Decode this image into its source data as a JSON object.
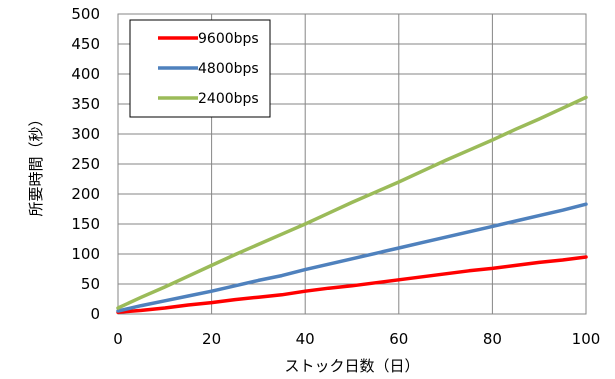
{
  "chart_data": {
    "type": "line",
    "xlabel": "ストック日数（日）",
    "ylabel": "所要時間（秒）",
    "xlim": [
      0,
      100
    ],
    "ylim": [
      0,
      500
    ],
    "x_ticks": [
      "0",
      "20",
      "40",
      "60",
      "80",
      "100"
    ],
    "y_ticks": [
      "0",
      "50",
      "100",
      "150",
      "200",
      "250",
      "300",
      "350",
      "400",
      "450",
      "500"
    ],
    "grid": true,
    "legend": "top-left",
    "series": [
      {
        "name": "9600bps",
        "color": "#ff0000",
        "points": [
          [
            0,
            3
          ],
          [
            5,
            6
          ],
          [
            10,
            10
          ],
          [
            15,
            15
          ],
          [
            20,
            19
          ],
          [
            25,
            24
          ],
          [
            30,
            28
          ],
          [
            35,
            32
          ],
          [
            40,
            38
          ],
          [
            45,
            43
          ],
          [
            50,
            47
          ],
          [
            55,
            52
          ],
          [
            60,
            57
          ],
          [
            65,
            62
          ],
          [
            70,
            67
          ],
          [
            75,
            72
          ],
          [
            80,
            76
          ],
          [
            85,
            81
          ],
          [
            90,
            86
          ],
          [
            95,
            90
          ],
          [
            100,
            95
          ]
        ]
      },
      {
        "name": "4800bps",
        "color": "#4f81bd",
        "points": [
          [
            0,
            5
          ],
          [
            5,
            14
          ],
          [
            10,
            22
          ],
          [
            15,
            30
          ],
          [
            20,
            38
          ],
          [
            25,
            47
          ],
          [
            30,
            56
          ],
          [
            35,
            64
          ],
          [
            40,
            74
          ],
          [
            45,
            83
          ],
          [
            50,
            92
          ],
          [
            55,
            101
          ],
          [
            60,
            110
          ],
          [
            65,
            119
          ],
          [
            70,
            128
          ],
          [
            75,
            137
          ],
          [
            80,
            146
          ],
          [
            85,
            155
          ],
          [
            90,
            164
          ],
          [
            95,
            173
          ],
          [
            100,
            183
          ]
        ]
      },
      {
        "name": "2400bps",
        "color": "#9bbb59",
        "points": [
          [
            0,
            10
          ],
          [
            5,
            28
          ],
          [
            10,
            45
          ],
          [
            15,
            63
          ],
          [
            20,
            81
          ],
          [
            25,
            99
          ],
          [
            30,
            116
          ],
          [
            35,
            133
          ],
          [
            40,
            150
          ],
          [
            45,
            168
          ],
          [
            50,
            186
          ],
          [
            55,
            203
          ],
          [
            60,
            220
          ],
          [
            65,
            238
          ],
          [
            70,
            256
          ],
          [
            75,
            273
          ],
          [
            80,
            290
          ],
          [
            85,
            308
          ],
          [
            90,
            325
          ],
          [
            95,
            343
          ],
          [
            100,
            361
          ]
        ]
      }
    ]
  }
}
